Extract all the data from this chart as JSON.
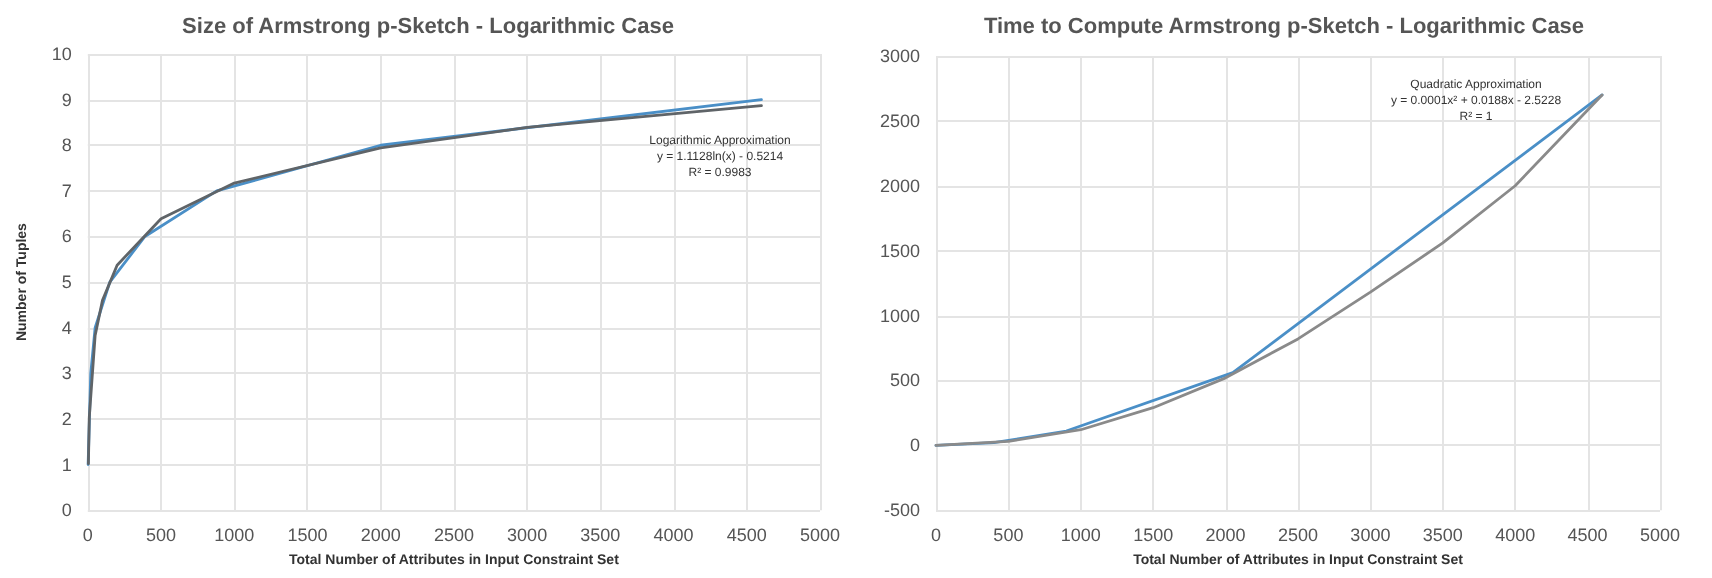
{
  "chart_data": [
    {
      "type": "line",
      "title": "Size of Armstrong p-Sketch - Logarithmic Case",
      "xlabel": "Total Number of Attributes in Input Constraint Set",
      "ylabel": "Number of Tuples",
      "annotations": [
        "Logarithmic Approximation",
        "y = 1.1128ln(x) - 0.5214",
        "R² = 0.9983"
      ],
      "series": [
        {
          "color": "#4a8fc7",
          "x": [
            2,
            20,
            50,
            150,
            390,
            880,
            2000,
            4600
          ],
          "values": [
            1,
            3,
            4,
            5,
            6,
            7,
            8,
            9
          ]
        },
        {
          "color": "#5f6468",
          "x": [
            4,
            10,
            50,
            100,
            200,
            500,
            1000,
            2000,
            3000,
            4600
          ],
          "values": [
            1.02,
            2.04,
            3.83,
            4.6,
            5.37,
            6.39,
            7.17,
            7.94,
            8.39,
            8.87
          ]
        }
      ],
      "xlim": [
        0,
        5000
      ],
      "xticks": [
        0,
        500,
        1000,
        1500,
        2000,
        2500,
        3000,
        3500,
        4000,
        4500,
        5000
      ],
      "ylim": [
        0,
        10
      ],
      "yticks": [
        0,
        1,
        2,
        3,
        4,
        5,
        6,
        7,
        8,
        9,
        10
      ],
      "grid": true,
      "marker": "none",
      "line_style": "solid"
    },
    {
      "type": "line",
      "title": "Time to Compute Armstrong p-Sketch - Logarithmic Case",
      "xlabel": "Total Number of Attributes in Input Constraint Set",
      "annotations": [
        "Quadratic Approximation",
        "y = 0.0001x² + 0.0188x - 2.5228",
        "R² = 1"
      ],
      "series": [
        {
          "color": "#4a8fc7",
          "x": [
            0,
            400,
            900,
            2050,
            4600
          ],
          "values": [
            0,
            20,
            110,
            560,
            2700
          ]
        },
        {
          "color": "#8a8a8a",
          "x": [
            0,
            500,
            1000,
            1500,
            2000,
            2500,
            3000,
            3500,
            4000,
            4600
          ],
          "values": [
            0,
            30,
            120,
            290,
            520,
            820,
            1180,
            1560,
            2000,
            2700
          ]
        }
      ],
      "xlim": [
        0,
        5000
      ],
      "xticks": [
        0,
        500,
        1000,
        1500,
        2000,
        2500,
        3000,
        3500,
        4000,
        4500,
        5000
      ],
      "ylim": [
        -500,
        3000
      ],
      "yticks": [
        -500,
        0,
        500,
        1000,
        1500,
        2000,
        2500,
        3000
      ],
      "grid": true,
      "marker": "none",
      "line_style": "solid"
    }
  ]
}
